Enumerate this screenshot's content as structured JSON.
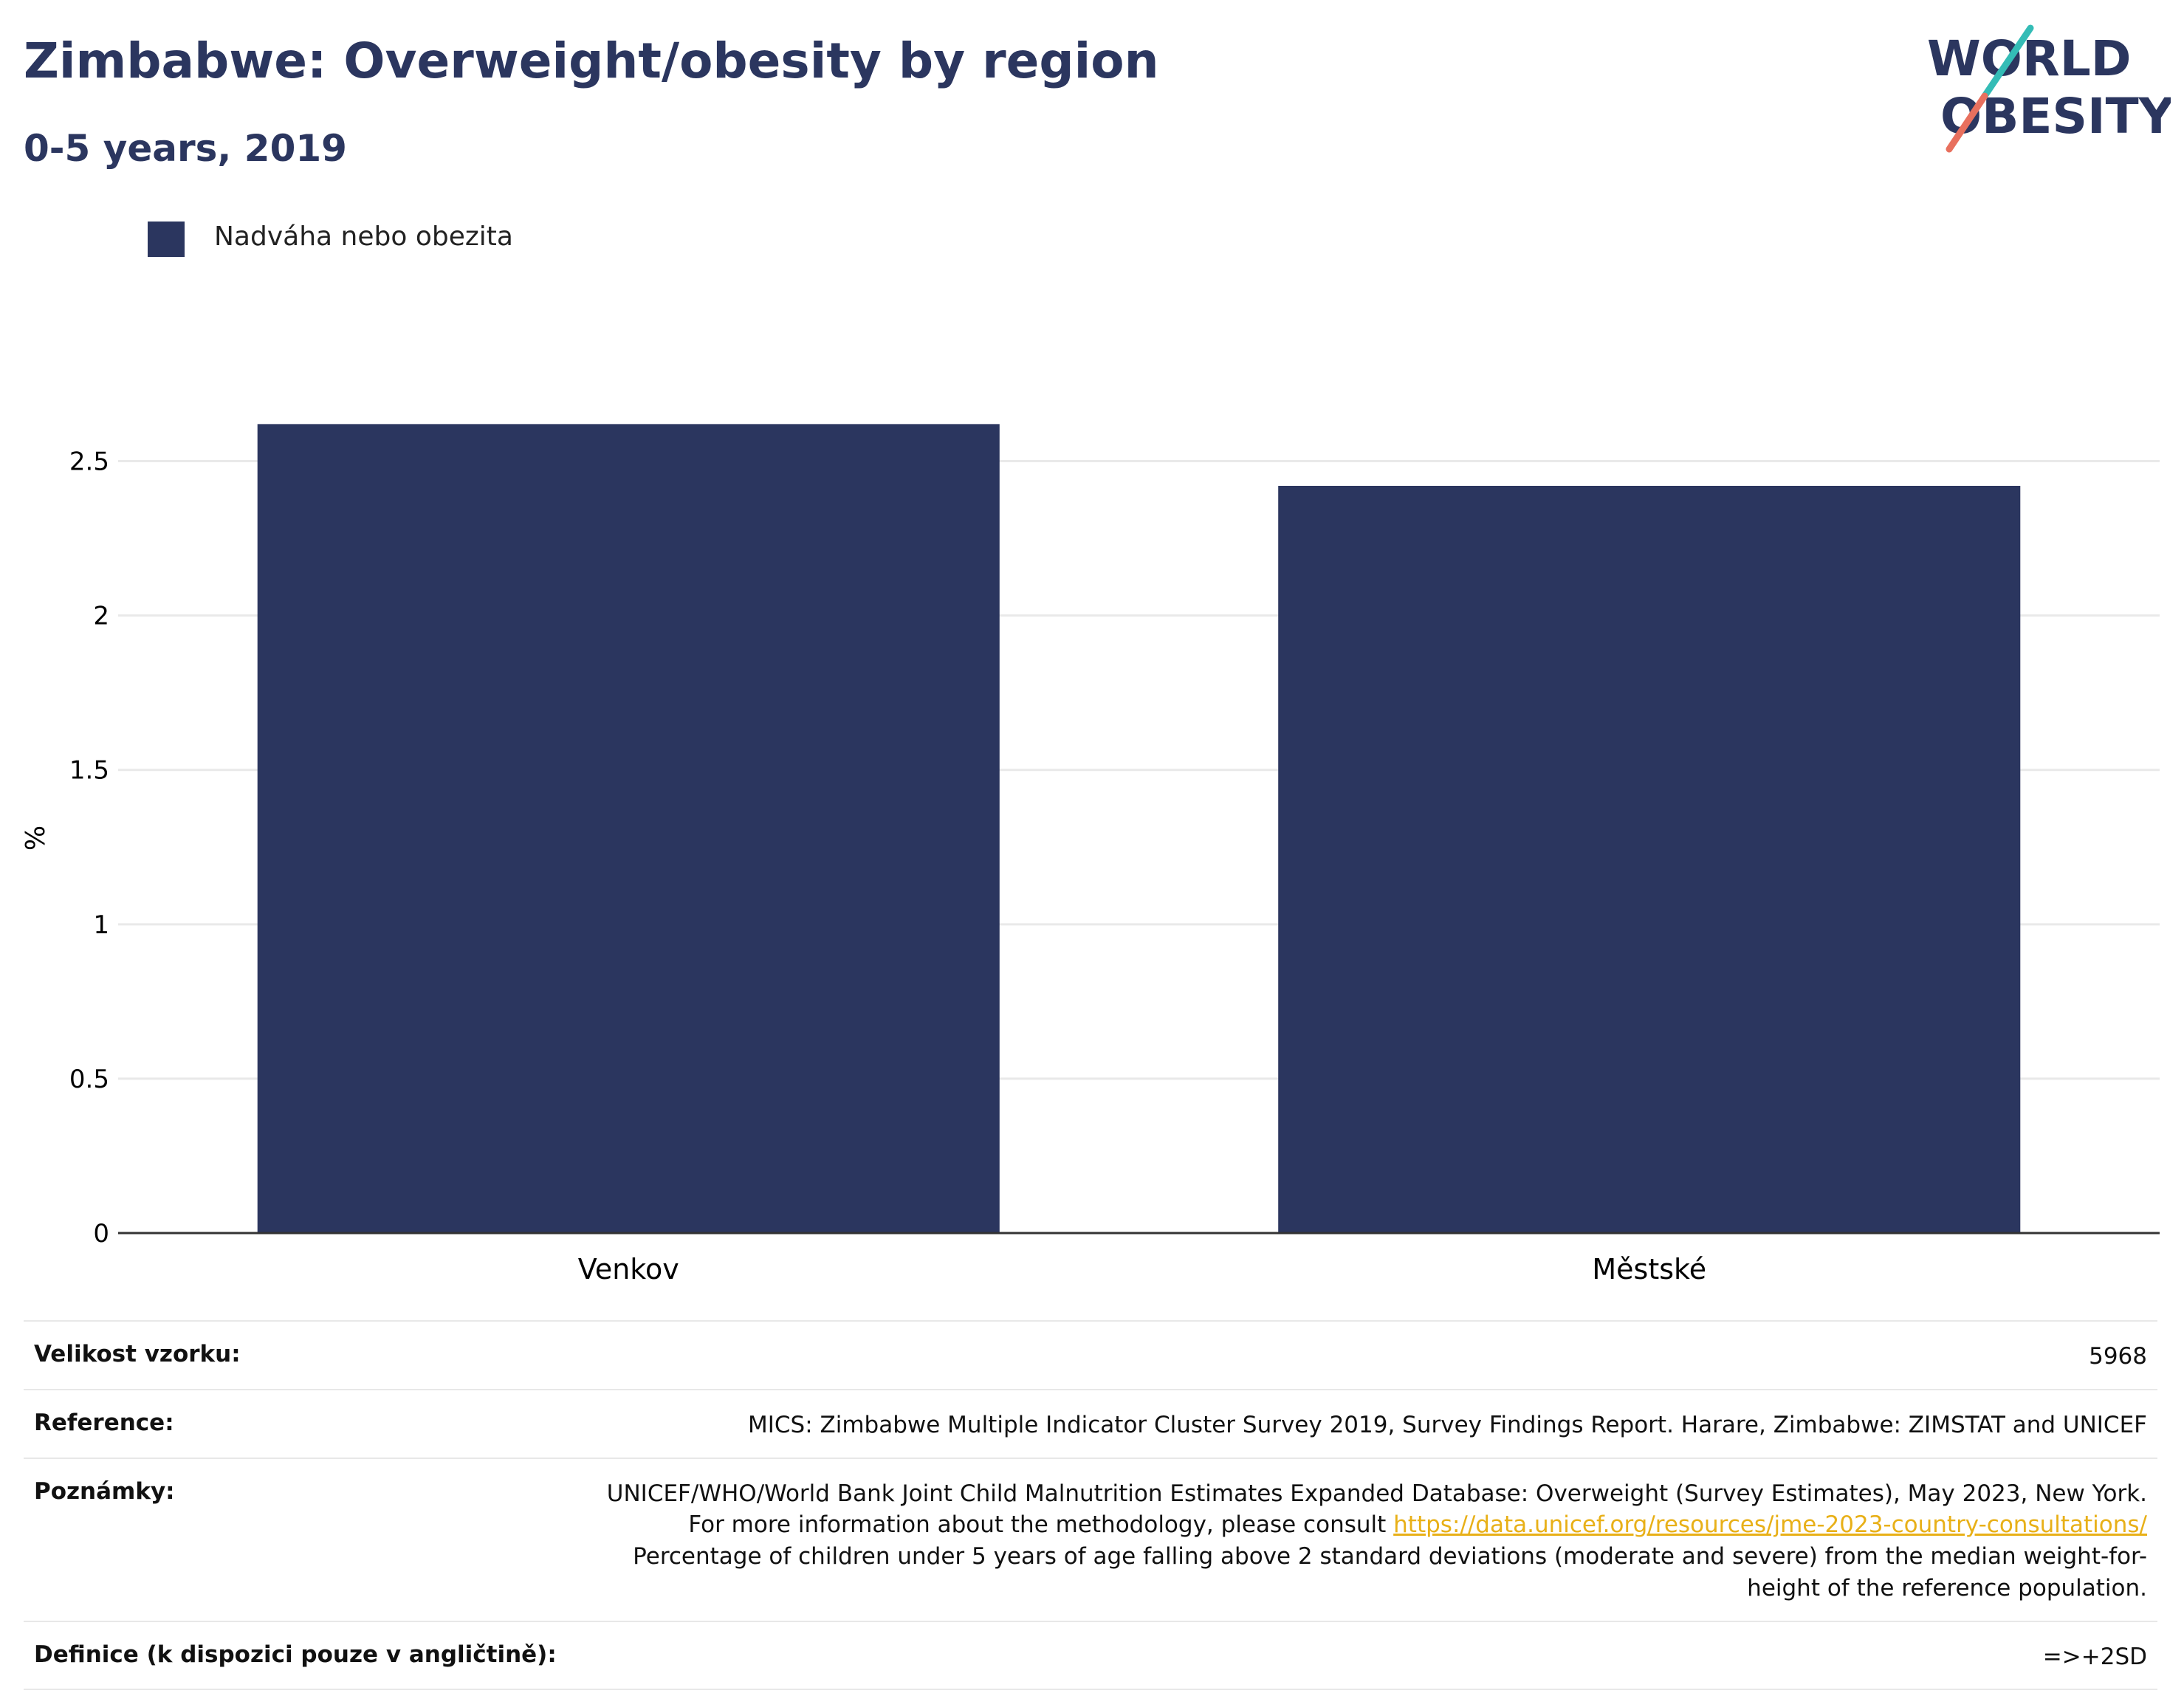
{
  "header": {
    "title": "Zimbabwe: Overweight/obesity by region",
    "subtitle": "0-5 years, 2019"
  },
  "logo": {
    "line1": "WORLD",
    "line2": "OBESITY",
    "accent_colors": [
      "#34bcb6",
      "#e8705e"
    ]
  },
  "chart_data": {
    "type": "bar",
    "categories": [
      "Venkov",
      "Městské"
    ],
    "series": [
      {
        "name": "Nadváha nebo obezita",
        "values": [
          2.62,
          2.42
        ],
        "color": "#2b365f"
      }
    ],
    "ylabel": "%",
    "xlabel": "",
    "ylim": [
      0,
      2.75
    ],
    "yticks": [
      0,
      0.5,
      1,
      1.5,
      2,
      2.5
    ],
    "ytick_labels": [
      "0",
      "0.5",
      "1",
      "1.5",
      "2",
      "2.5"
    ],
    "grid": true,
    "legend_position": "top-left"
  },
  "info": {
    "sample_size_label": "Velikost vzorku:",
    "sample_size_value": "5968",
    "reference_label": "Reference:",
    "reference_value": "MICS: Zimbabwe Multiple Indicator Cluster Survey 2019, Survey Findings Report. Harare, Zimbabwe: ZIMSTAT and UNICEF",
    "notes_label": "Poznámky:",
    "notes_text_1": "UNICEF/WHO/World Bank Joint Child Malnutrition Estimates Expanded Database: Overweight (Survey Estimates), May 2023, New York. For more information about the methodology, please consult",
    "notes_link": "https://data.unicef.org/resources/jme-2023-country-consultations/",
    "notes_text_2": "Percentage of children under 5 years of age falling above 2 standard deviations (moderate and severe) from the median weight-for-height of the reference population.",
    "definition_label": "Definice (k dispozici pouze v angličtině):",
    "definition_value": "=>+2SD"
  }
}
